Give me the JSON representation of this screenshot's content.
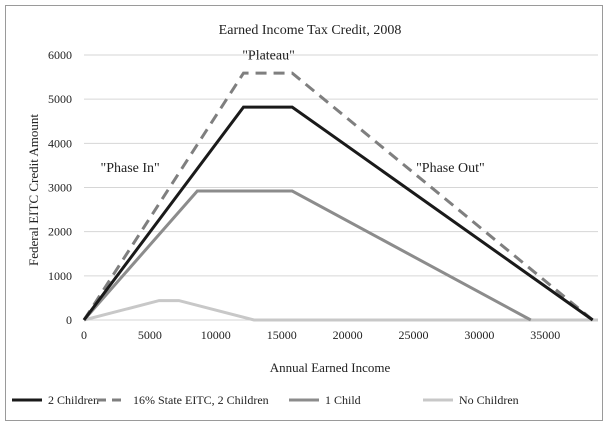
{
  "chart_data": {
    "type": "line",
    "title": "Earned Income Tax Credit, 2008",
    "xlabel": "Annual Earned Income",
    "ylabel": "Federal EITC Credit Amount",
    "xlim": [
      0,
      39000
    ],
    "ylim": [
      0,
      6000
    ],
    "xticks": [
      0,
      5000,
      10000,
      15000,
      20000,
      25000,
      30000,
      35000
    ],
    "yticks": [
      0,
      1000,
      2000,
      3000,
      4000,
      5000,
      6000
    ],
    "grid": "horizontal",
    "legend_position": "bottom",
    "series": [
      {
        "name": "2 Children",
        "color": "#1a1a1a",
        "dash": "solid",
        "points": [
          [
            0,
            0
          ],
          [
            12100,
            4820
          ],
          [
            15800,
            4820
          ],
          [
            38600,
            0
          ]
        ]
      },
      {
        "name": "16% State EITC, 2 Children",
        "color": "#7f7f7f",
        "dash": "dashed",
        "points": [
          [
            0,
            0
          ],
          [
            12100,
            5590
          ],
          [
            15800,
            5590
          ],
          [
            38600,
            0
          ]
        ]
      },
      {
        "name": "1 Child",
        "color": "#8c8c8c",
        "dash": "solid",
        "points": [
          [
            0,
            0
          ],
          [
            8600,
            2920
          ],
          [
            15800,
            2920
          ],
          [
            33900,
            0
          ]
        ]
      },
      {
        "name": "No Children",
        "color": "#c8c8c8",
        "dash": "solid",
        "points": [
          [
            0,
            0
          ],
          [
            5700,
            440
          ],
          [
            7200,
            440
          ],
          [
            12900,
            0
          ],
          [
            39000,
            0
          ]
        ]
      }
    ],
    "annotations": [
      {
        "text": "\"Plateau\"",
        "x": 14000,
        "y": 5900
      },
      {
        "text": "\"Phase In\"",
        "x": 3500,
        "y": 3350
      },
      {
        "text": "\"Phase Out\"",
        "x": 27800,
        "y": 3350
      }
    ]
  }
}
